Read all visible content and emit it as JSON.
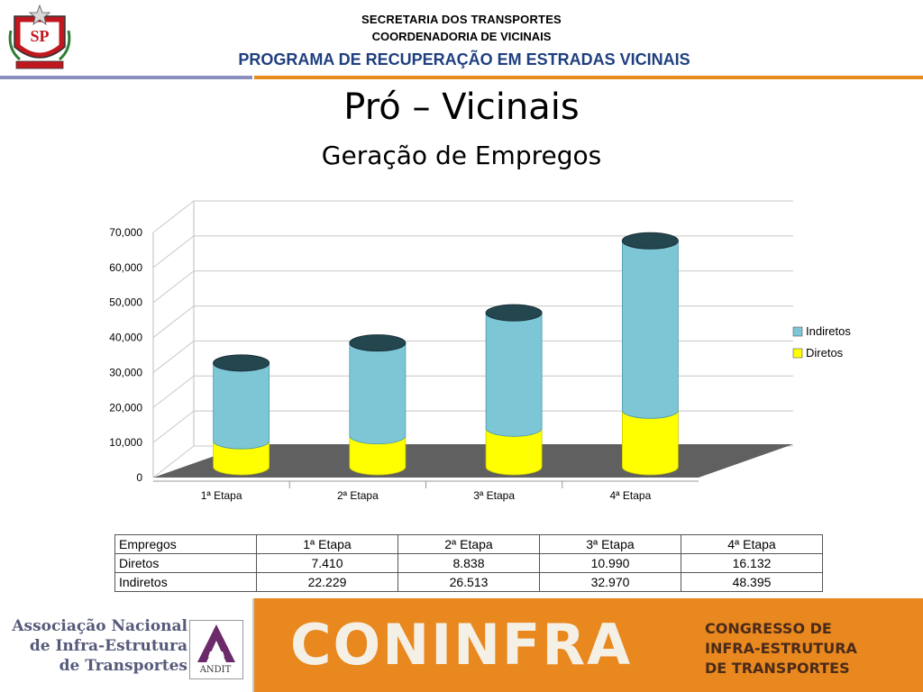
{
  "header": {
    "line1": "SECRETARIA DOS TRANSPORTES",
    "line2": "COORDENADORIA DE VICINAIS",
    "program": "PROGRAMA DE RECUPERAÇÃO EM ESTRADAS VICINAIS",
    "logo_text": "SP"
  },
  "title": "Pró – Vicinais",
  "subtitle": "Geração de Empregos",
  "chart_data": {
    "type": "bar",
    "stacked": true,
    "style": "3d-cylinder",
    "categories": [
      "1ª Etapa",
      "2ª Etapa",
      "3ª Etapa",
      "4ª Etapa"
    ],
    "series": [
      {
        "name": "Diretos",
        "values": [
          7410,
          8838,
          10990,
          16132
        ],
        "color": "#ffff00"
      },
      {
        "name": "Indiretos",
        "values": [
          22229,
          26513,
          32970,
          48395
        ],
        "color": "#7dc6d6"
      }
    ],
    "y_ticks": [
      "0",
      "10,000",
      "20,000",
      "30,000",
      "40,000",
      "50,000",
      "60,000",
      "70,000"
    ],
    "ylim": [
      0,
      70000
    ],
    "grid": true,
    "legend_position": "right",
    "legend_order": [
      "Indiretos",
      "Diretos"
    ]
  },
  "table": {
    "headers": [
      "Empregos",
      "1ª Etapa",
      "2ª Etapa",
      "3ª Etapa",
      "4ª Etapa"
    ],
    "rows": [
      [
        "Diretos",
        "7.410",
        "8.838",
        "10.990",
        "16.132"
      ],
      [
        "Indiretos",
        "22.229",
        "26.513",
        "32.970",
        "48.395"
      ]
    ]
  },
  "footer": {
    "assoc_line1": "Associação Nacional",
    "assoc_line2": "de Infra-Estrutura",
    "assoc_line3": "de Transportes",
    "andit_label": "ANDIT",
    "coninfra": "CONINFRA",
    "congress_line1": "CONGRESSO DE",
    "congress_line2": "INFRA-ESTRUTURA",
    "congress_line3": "DE TRANSPORTES"
  }
}
